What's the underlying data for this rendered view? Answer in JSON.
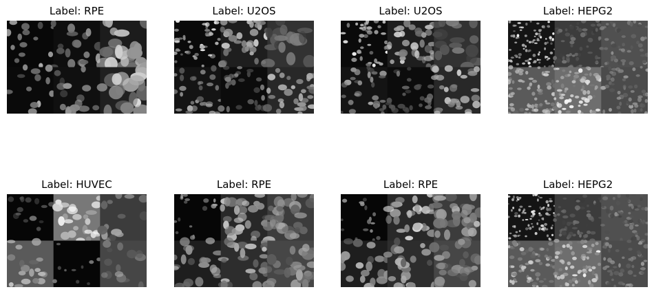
{
  "figure": {
    "panels": [
      {
        "title": "Label: RPE",
        "image": "rpe-cell-microscopy-montage"
      },
      {
        "title": "Label: U2OS",
        "image": "u2os-cell-microscopy-montage"
      },
      {
        "title": "Label: U2OS",
        "image": "u2os-cell-microscopy-montage"
      },
      {
        "title": "Label: HEPG2",
        "image": "hepg2-cell-microscopy-montage"
      },
      {
        "title": "Label: HUVEC",
        "image": "huvec-cell-microscopy-montage"
      },
      {
        "title": "Label: RPE",
        "image": "rpe-cell-microscopy-montage"
      },
      {
        "title": "Label: RPE",
        "image": "rpe-cell-microscopy-montage"
      },
      {
        "title": "Label: HEPG2",
        "image": "hepg2-cell-microscopy-montage"
      }
    ]
  }
}
